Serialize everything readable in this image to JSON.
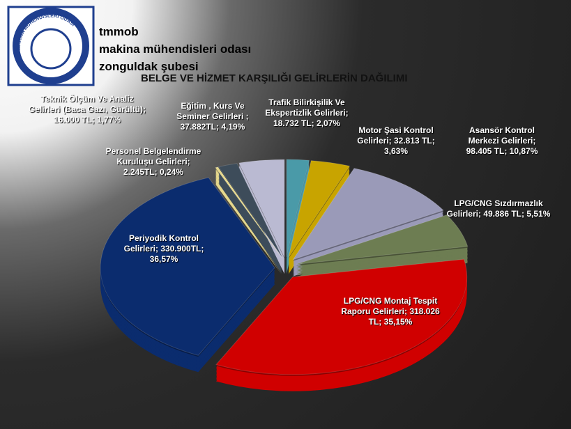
{
  "logo": {
    "top": "TMMOB",
    "ring": "MAKİNA MÜHENDİSLERİ ODASI"
  },
  "header": {
    "lines": [
      "tmmob",
      "makina mühendisleri odası",
      "zonguldak şubesi"
    ]
  },
  "chart_data": {
    "type": "pie",
    "title": "BELGE VE HİZMET KARŞILIĞI GELİRLERİN DAĞILIMI",
    "categories": [
      "Trafik Bilirkişilik Ve Ekspertizlik Gelirleri;",
      "Motor Şasi Kontrol Gelirleri;",
      "Asansör Kontrol Merkezi Gelirleri;",
      "LPG/CNG Sızdırmazlık Gelirleri;",
      "LPG/CNG Montaj Tespit Raporu Gelirleri;",
      "Periyodik Kontrol Gelirleri;",
      "Personel Belgelendirme Kuruluşu Gelirleri;",
      "Teknik Ölçüm Ve Analiz Gelirleri (Baca Gazı, Gürültü);",
      "Eğitim , Kurs Ve Seminer Gelirleri ;"
    ],
    "amounts": [
      "18.732 TL;",
      "32.813 TL;",
      "98.405 TL;",
      "49.886 TL;",
      "318.026 TL;",
      "330.900TL;",
      "2.245TL;",
      "16.000 TL;",
      "37.882TL;"
    ],
    "values": [
      2.07,
      3.63,
      10.87,
      5.51,
      35.15,
      36.57,
      0.24,
      1.77,
      4.19
    ],
    "value_labels": [
      "2,07%",
      "3,63%",
      "10,87%",
      "5,51%",
      "35,15%",
      "36,57%",
      "0,24%",
      "1,77%",
      "4,19%"
    ],
    "colors": [
      "#4a9aa8",
      "#c8a400",
      "#9a9ab8",
      "#6d7d52",
      "#d00000",
      "#0b2c6e",
      "#e6d88c",
      "#3d4c5a",
      "#babad2"
    ]
  }
}
